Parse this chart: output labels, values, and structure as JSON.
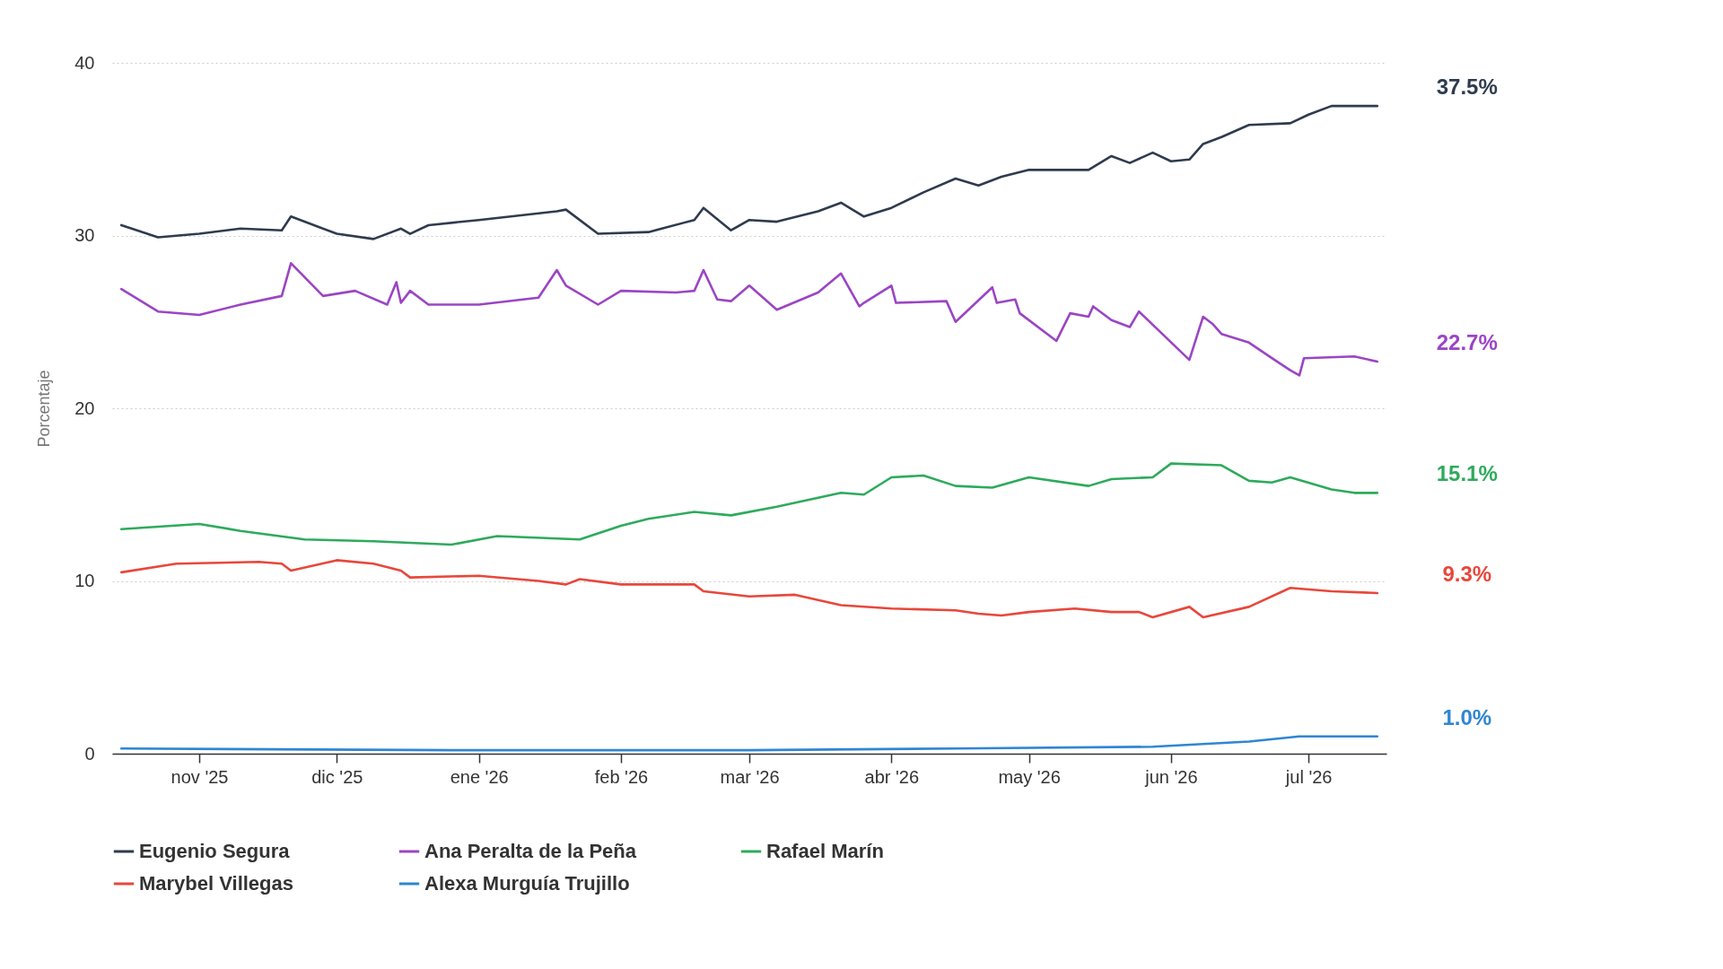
{
  "chart_data": {
    "type": "line",
    "ylabel": "Porcentaje",
    "xlim": [
      "2025-10-13",
      "2026-07-18"
    ],
    "ylim": [
      0,
      40
    ],
    "yticks": [
      0,
      10,
      20,
      30,
      40
    ],
    "xticks": [
      {
        "value": "2025-11-01",
        "label": "nov '25"
      },
      {
        "value": "2025-12-01",
        "label": "dic '25"
      },
      {
        "value": "2026-01-01",
        "label": "ene '26"
      },
      {
        "value": "2026-02-01",
        "label": "feb '26"
      },
      {
        "value": "2026-03-01",
        "label": "mar '26"
      },
      {
        "value": "2026-04-01",
        "label": "abr '26"
      },
      {
        "value": "2026-05-01",
        "label": "may '26"
      },
      {
        "value": "2026-06-01",
        "label": "jun '26"
      },
      {
        "value": "2026-07-01",
        "label": "jul '26"
      }
    ],
    "grid": "y",
    "legend": "bottom",
    "series": [
      {
        "name": "Eugenio Segura",
        "color": "#2f3b4e",
        "x": [
          "2025-10-15",
          "2025-10-23",
          "2025-11-01",
          "2025-11-10",
          "2025-11-19",
          "2025-11-21",
          "2025-12-01",
          "2025-12-09",
          "2025-12-15",
          "2025-12-17",
          "2025-12-21",
          "2026-01-01",
          "2026-01-18",
          "2026-01-20",
          "2026-01-27",
          "2026-02-07",
          "2026-02-17",
          "2026-02-19",
          "2026-02-25",
          "2026-03-01",
          "2026-03-07",
          "2026-03-16",
          "2026-03-21",
          "2026-03-26",
          "2026-04-01",
          "2026-04-08",
          "2026-04-15",
          "2026-04-20",
          "2026-04-25",
          "2026-05-01",
          "2026-05-14",
          "2026-05-19",
          "2026-05-23",
          "2026-05-28",
          "2026-06-01",
          "2026-06-05",
          "2026-06-08",
          "2026-06-12",
          "2026-06-18",
          "2026-06-27",
          "2026-07-01",
          "2026-07-06",
          "2026-07-11",
          "2026-07-16"
        ],
        "values": [
          30.6,
          29.9,
          30.1,
          30.4,
          30.3,
          31.1,
          30.1,
          29.8,
          30.4,
          30.1,
          30.6,
          30.9,
          31.4,
          31.5,
          30.1,
          30.2,
          30.9,
          31.6,
          30.3,
          30.9,
          30.8,
          31.4,
          31.9,
          31.1,
          31.6,
          32.5,
          33.3,
          32.9,
          33.4,
          33.8,
          33.8,
          34.6,
          34.2,
          34.8,
          34.3,
          34.4,
          35.3,
          35.7,
          36.4,
          36.5,
          37.0,
          37.5,
          37.5,
          37.5
        ]
      },
      {
        "name": "Ana Peralta de la Peña",
        "color": "#9b45c4",
        "x": [
          "2025-10-15",
          "2025-10-23",
          "2025-11-01",
          "2025-11-10",
          "2025-11-19",
          "2025-11-21",
          "2025-11-28",
          "2025-12-05",
          "2025-12-12",
          "2025-12-14",
          "2025-12-15",
          "2025-12-17",
          "2025-12-21",
          "2026-01-01",
          "2026-01-14",
          "2026-01-18",
          "2026-01-20",
          "2026-01-27",
          "2026-02-01",
          "2026-02-13",
          "2026-02-17",
          "2026-02-19",
          "2026-02-22",
          "2026-02-25",
          "2026-03-01",
          "2026-03-07",
          "2026-03-16",
          "2026-03-21",
          "2026-03-25",
          "2026-03-26",
          "2026-04-01",
          "2026-04-02",
          "2026-04-13",
          "2026-04-15",
          "2026-04-23",
          "2026-04-24",
          "2026-04-28",
          "2026-04-29",
          "2026-05-07",
          "2026-05-10",
          "2026-05-14",
          "2026-05-15",
          "2026-05-19",
          "2026-05-23",
          "2026-05-25",
          "2026-06-05",
          "2026-06-08",
          "2026-06-10",
          "2026-06-12",
          "2026-06-18",
          "2026-06-23",
          "2026-06-27",
          "2026-06-29",
          "2026-06-30",
          "2026-07-11",
          "2026-07-16"
        ],
        "values": [
          26.9,
          25.6,
          25.4,
          26.0,
          26.5,
          28.4,
          26.5,
          26.8,
          26.0,
          27.3,
          26.1,
          26.8,
          26.0,
          26.0,
          26.4,
          28.0,
          27.1,
          26.0,
          26.8,
          26.7,
          26.8,
          28.0,
          26.3,
          26.2,
          27.1,
          25.7,
          26.7,
          27.8,
          25.9,
          26.1,
          27.1,
          26.1,
          26.2,
          25.0,
          27.0,
          26.1,
          26.3,
          25.5,
          23.9,
          25.5,
          25.3,
          25.9,
          25.1,
          24.7,
          25.6,
          22.8,
          25.3,
          24.9,
          24.3,
          23.8,
          22.9,
          22.2,
          21.9,
          22.9,
          23.0,
          22.7
        ]
      },
      {
        "name": "Rafael Marín",
        "color": "#2eaa5c",
        "x": [
          "2025-10-15",
          "2025-11-01",
          "2025-11-10",
          "2025-11-24",
          "2025-12-09",
          "2025-12-26",
          "2026-01-05",
          "2026-01-23",
          "2026-02-01",
          "2026-02-07",
          "2026-02-17",
          "2026-02-25",
          "2026-03-07",
          "2026-03-21",
          "2026-03-26",
          "2026-04-01",
          "2026-04-08",
          "2026-04-15",
          "2026-04-23",
          "2026-05-01",
          "2026-05-14",
          "2026-05-19",
          "2026-05-28",
          "2026-06-01",
          "2026-06-12",
          "2026-06-18",
          "2026-06-23",
          "2026-06-27",
          "2026-07-06",
          "2026-07-11",
          "2026-07-16"
        ],
        "values": [
          13.0,
          13.3,
          12.9,
          12.4,
          12.3,
          12.1,
          12.6,
          12.4,
          13.2,
          13.6,
          14.0,
          13.8,
          14.3,
          15.1,
          15.0,
          16.0,
          16.1,
          15.5,
          15.4,
          16.0,
          15.5,
          15.9,
          16.0,
          16.8,
          16.7,
          15.8,
          15.7,
          16.0,
          15.3,
          15.1,
          15.1
        ]
      },
      {
        "name": "Marybel Villegas",
        "color": "#e8473b",
        "x": [
          "2025-10-15",
          "2025-10-27",
          "2025-11-14",
          "2025-11-19",
          "2025-11-21",
          "2025-12-01",
          "2025-12-09",
          "2025-12-15",
          "2025-12-17",
          "2026-01-01",
          "2026-01-14",
          "2026-01-20",
          "2026-01-23",
          "2026-02-01",
          "2026-02-17",
          "2026-02-19",
          "2026-03-01",
          "2026-03-11",
          "2026-03-21",
          "2026-04-01",
          "2026-04-15",
          "2026-04-20",
          "2026-04-25",
          "2026-05-01",
          "2026-05-11",
          "2026-05-19",
          "2026-05-25",
          "2026-05-28",
          "2026-06-05",
          "2026-06-08",
          "2026-06-18",
          "2026-06-27",
          "2026-07-06",
          "2026-07-16"
        ],
        "values": [
          10.5,
          11.0,
          11.1,
          11.0,
          10.6,
          11.2,
          11.0,
          10.6,
          10.2,
          10.3,
          10.0,
          9.8,
          10.1,
          9.8,
          9.8,
          9.4,
          9.1,
          9.2,
          8.6,
          8.4,
          8.3,
          8.1,
          8.0,
          8.2,
          8.4,
          8.2,
          8.2,
          7.9,
          8.5,
          7.9,
          8.5,
          9.6,
          9.4,
          9.3
        ]
      },
      {
        "name": "Alexa Murguía Trujillo",
        "color": "#2f86d1",
        "x": [
          "2025-10-15",
          "2025-12-26",
          "2026-03-01",
          "2026-04-15",
          "2026-05-28",
          "2026-06-18",
          "2026-06-29",
          "2026-07-16"
        ],
        "values": [
          0.3,
          0.2,
          0.2,
          0.3,
          0.4,
          0.7,
          1.0,
          1.0
        ]
      }
    ],
    "annotations": [
      "37.5%",
      "22.7%",
      "15.1%",
      "9.3%",
      "1.0%"
    ]
  }
}
